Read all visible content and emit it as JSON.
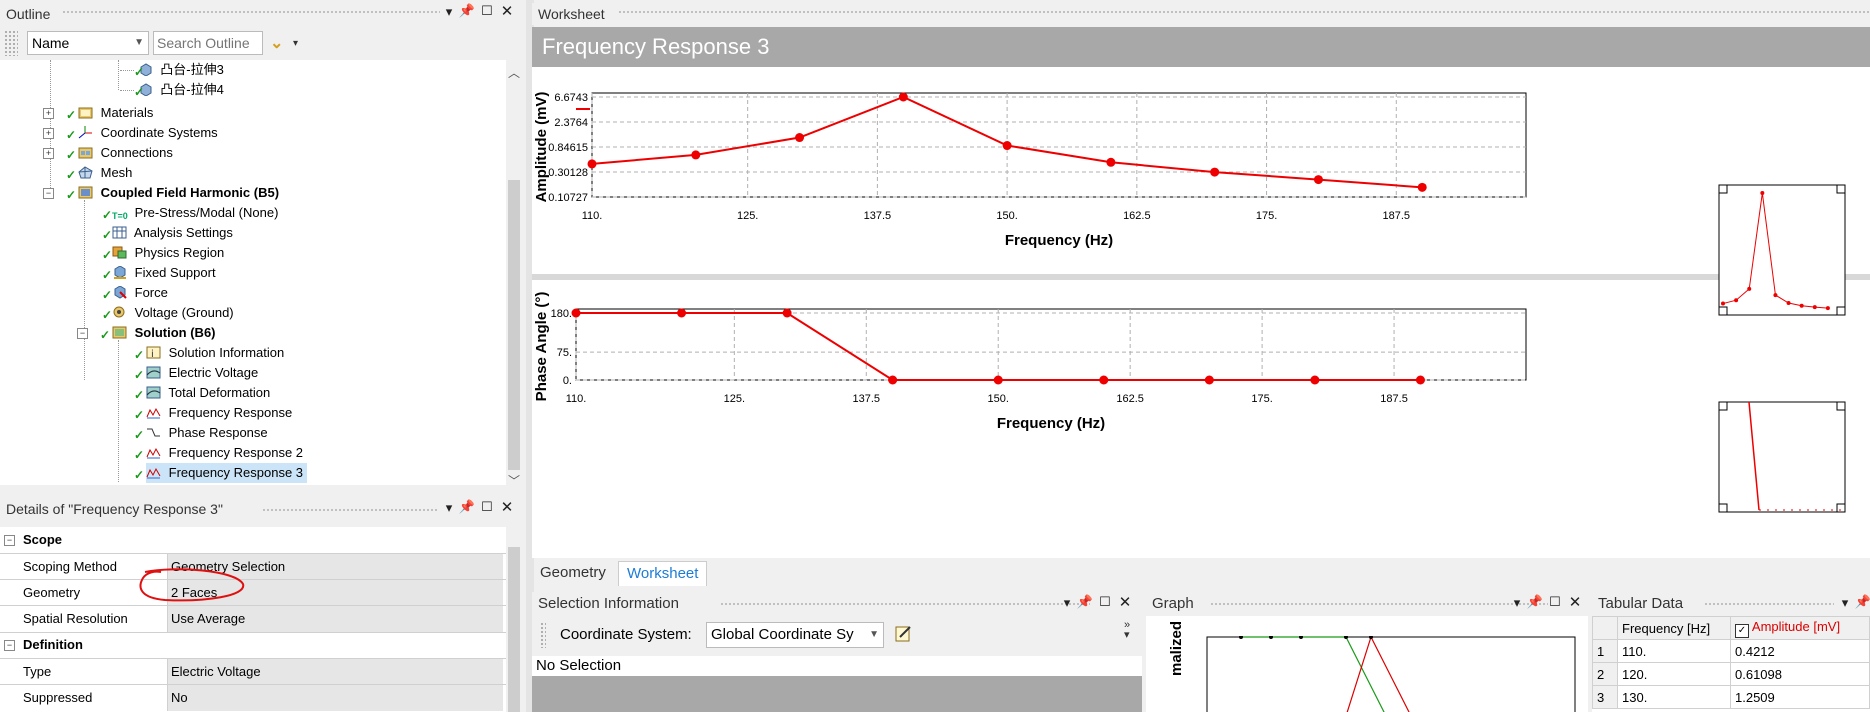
{
  "outline": {
    "title": "Outline",
    "name_select": "Name",
    "search_placeholder": "Search Outline",
    "tree": [
      {
        "label": "凸台-拉伸3",
        "indent": 0
      },
      {
        "label": "凸台-拉伸4",
        "indent": 0
      },
      {
        "label": "Materials",
        "bold": false
      },
      {
        "label": "Coordinate Systems"
      },
      {
        "label": "Connections"
      },
      {
        "label": "Mesh"
      },
      {
        "label": "Coupled Field Harmonic (B5)"
      },
      {
        "label": "Pre-Stress/Modal (None)"
      },
      {
        "label": "Analysis Settings"
      },
      {
        "label": "Physics Region"
      },
      {
        "label": "Fixed Support"
      },
      {
        "label": "Force"
      },
      {
        "label": "Voltage (Ground)"
      },
      {
        "label": "Solution (B6)"
      },
      {
        "label": "Solution Information"
      },
      {
        "label": "Electric Voltage"
      },
      {
        "label": "Total Deformation"
      },
      {
        "label": "Frequency Response"
      },
      {
        "label": "Phase Response"
      },
      {
        "label": "Frequency Response 2"
      },
      {
        "label": "Frequency Response 3"
      }
    ]
  },
  "details": {
    "title": "Details of \"Frequency Response 3\"",
    "sections": [
      {
        "header": "Scope",
        "rows": [
          {
            "label": "Scoping Method",
            "value": "Geometry Selection"
          },
          {
            "label": "Geometry",
            "value": "2 Faces"
          },
          {
            "label": "Spatial Resolution",
            "value": "Use Average"
          }
        ]
      },
      {
        "header": "Definition",
        "rows": [
          {
            "label": "Type",
            "value": "Electric Voltage"
          },
          {
            "label": "Suppressed",
            "value": "No"
          }
        ]
      }
    ]
  },
  "worksheet": {
    "title": "Worksheet",
    "heading": "Frequency Response 3"
  },
  "chart_data": [
    {
      "type": "line",
      "ylabel": "Amplitude (mV)",
      "xlabel": "Frequency (Hz)",
      "x_ticks": [
        "110.",
        "125.",
        "137.5",
        "150.",
        "162.5",
        "175.",
        "187.5"
      ],
      "y_ticks": [
        "6.6743",
        "2.3764",
        "0.84615",
        "0.30128",
        "0.10727"
      ],
      "y_scale": "log",
      "xlim": [
        110,
        200
      ],
      "ylim": [
        0.10727,
        6.6743
      ],
      "x": [
        110,
        120,
        130,
        140,
        150,
        160,
        170,
        180,
        190
      ],
      "values": [
        0.4212,
        0.61098,
        1.2509,
        6.6743,
        0.9,
        0.45,
        0.3,
        0.22,
        0.16
      ],
      "color": "#ee0000"
    },
    {
      "type": "line",
      "ylabel": "Phase Angle (°)",
      "xlabel": "Frequency (Hz)",
      "x_ticks": [
        "110.",
        "125.",
        "137.5",
        "150.",
        "162.5",
        "175.",
        "187.5"
      ],
      "y_ticks": [
        "180.",
        "75.",
        "0."
      ],
      "xlim": [
        110,
        200
      ],
      "ylim": [
        0,
        180
      ],
      "x": [
        110,
        120,
        130,
        140,
        150,
        160,
        170,
        180,
        190
      ],
      "values": [
        180,
        180,
        180,
        0,
        0,
        0,
        0,
        0,
        0
      ],
      "color": "#ee0000"
    }
  ],
  "tabs": [
    {
      "label": "Geometry"
    },
    {
      "label": "Worksheet"
    }
  ],
  "selection_info": {
    "title": "Selection Information",
    "coord_label": "Coordinate System:",
    "coord_value": "Global Coordinate Sy",
    "no_selection": "No Selection"
  },
  "graph": {
    "title": "Graph",
    "ylabel_fragment": "malized"
  },
  "tabular": {
    "title": "Tabular Data",
    "headers": [
      "Frequency [Hz]",
      "Amplitude [mV]"
    ],
    "rows": [
      {
        "n": "1",
        "freq": "110.",
        "amp": "0.4212"
      },
      {
        "n": "2",
        "freq": "120.",
        "amp": "0.61098"
      },
      {
        "n": "3",
        "freq": "130.",
        "amp": "1.2509"
      }
    ]
  },
  "colors": {
    "curve": "#ee0000",
    "accent": "#1c7cd6",
    "check": "#1a9a1a"
  }
}
